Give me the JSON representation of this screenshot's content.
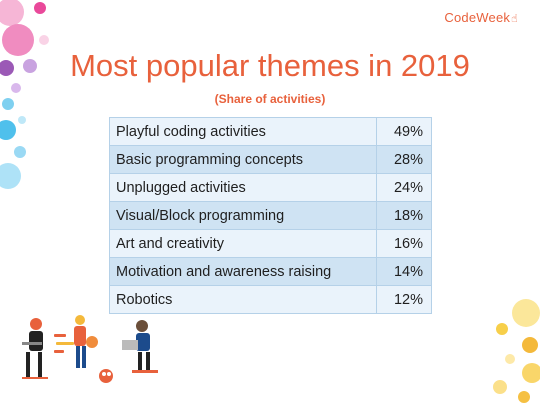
{
  "brand": {
    "name": "CodeWeek",
    "icon": "pointing-hand-icon"
  },
  "chart_data": {
    "type": "table",
    "title": "Most popular themes in 2019",
    "subtitle": "(Share of activities)",
    "categories": [
      "Playful coding activities",
      "Basic programming concepts",
      "Unplugged activities",
      "Visual/Block programming",
      "Art and creativity",
      "Motivation and awareness raising",
      "Robotics"
    ],
    "values": [
      "49%",
      "28%",
      "24%",
      "18%",
      "16%",
      "14%",
      "12%"
    ]
  },
  "colors": {
    "accent": "#e8613c",
    "row_light": "#eaf3fb",
    "row_dark": "#cfe3f3",
    "border": "#b5d1e8"
  }
}
